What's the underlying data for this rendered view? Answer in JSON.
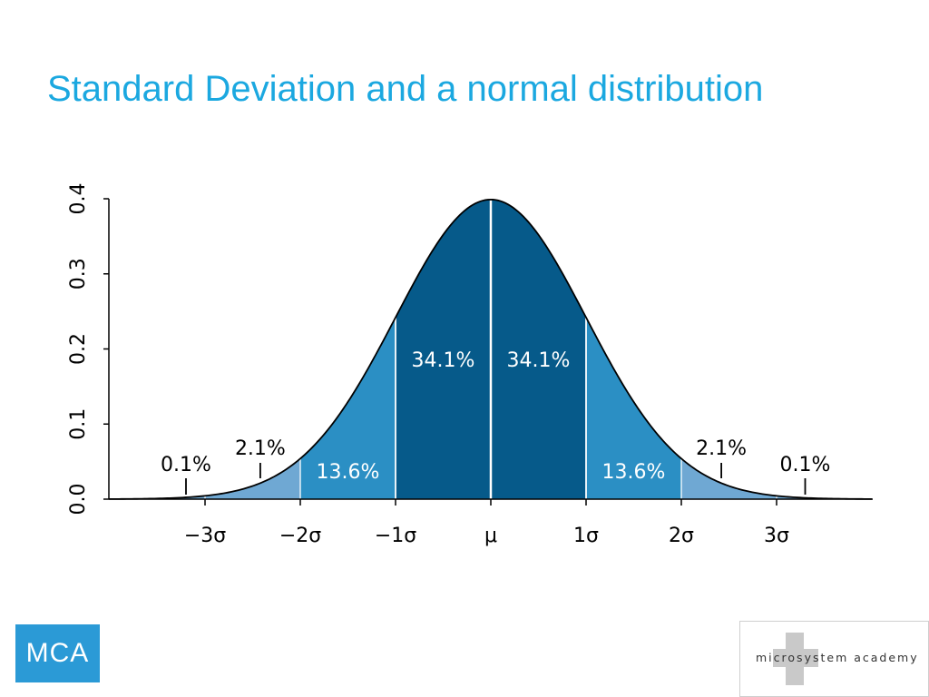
{
  "slide": {
    "title": "Standard Deviation and a normal distribution"
  },
  "colors": {
    "title": "#1ba8e0",
    "band_inner": "#065a8a",
    "band_middle": "#2b8fc4",
    "band_outer": "#6fa8d3",
    "axis": "#000000",
    "divider": "#ffffff"
  },
  "chart_data": {
    "type": "area",
    "title": "",
    "xlabel": "",
    "ylabel": "",
    "curve": "standard normal probability density",
    "x_ticks": [
      "−3σ",
      "−2σ",
      "−1σ",
      "μ",
      "1σ",
      "2σ",
      "3σ"
    ],
    "y_ticks": [
      "0.0",
      "0.1",
      "0.2",
      "0.3",
      "0.4"
    ],
    "xlim": [
      -3.0,
      4.0
    ],
    "ylim": [
      0,
      0.4
    ],
    "bands": [
      {
        "from": -3,
        "to": -2,
        "percent": "2.1%"
      },
      {
        "from": -2,
        "to": -1,
        "percent": "13.6%"
      },
      {
        "from": -1,
        "to": 0,
        "percent": "34.1%"
      },
      {
        "from": 0,
        "to": 1,
        "percent": "34.1%"
      },
      {
        "from": 1,
        "to": 2,
        "percent": "13.6%"
      },
      {
        "from": 2,
        "to": 3,
        "percent": "2.1%"
      }
    ],
    "tails": [
      {
        "side": "left",
        "percent": "0.1%"
      },
      {
        "side": "right",
        "percent": "0.1%"
      }
    ],
    "grid": false,
    "legend": "none"
  },
  "logos": {
    "left": "MCA",
    "right": {
      "part1": "micr",
      "part2": "o",
      "part3": "s",
      "part4": "ystem",
      "part5": " academy"
    }
  }
}
